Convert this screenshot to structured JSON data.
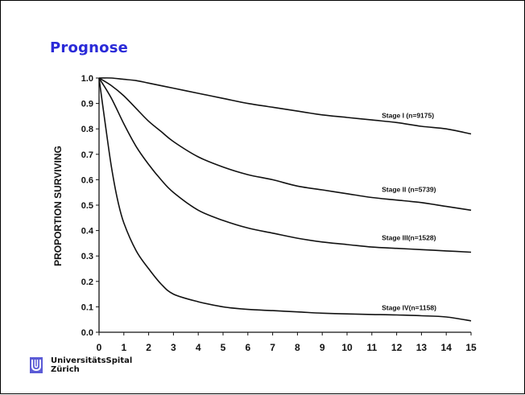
{
  "slide": {
    "title": "Prognose",
    "org_line1": "UniversitätsSpital",
    "org_line2": "Zürich",
    "logo_color": "#5b5bd6",
    "title_color": "#2a2ad8"
  },
  "chart_data": {
    "type": "line",
    "title": "",
    "xlabel": "",
    "ylabel": "PROPORTION SURVIVING",
    "xlim": [
      0,
      15
    ],
    "ylim": [
      0,
      1.0
    ],
    "xticks": [
      "0",
      "1",
      "2",
      "3",
      "4",
      "5",
      "6",
      "7",
      "8",
      "9",
      "10",
      "11",
      "12",
      "13",
      "14",
      "15"
    ],
    "yticks": [
      "0.0",
      "0.1",
      "0.2",
      "0.3",
      "0.4",
      "0.5",
      "0.6",
      "0.7",
      "0.8",
      "0.9",
      "1.0"
    ],
    "grid": false,
    "series": [
      {
        "name": "Stage I  (n=9175)",
        "x": [
          0,
          0.5,
          1,
          1.5,
          2,
          3,
          4,
          5,
          6,
          7,
          8,
          9,
          10,
          11,
          12,
          13,
          14,
          15
        ],
        "y": [
          1.0,
          1.0,
          0.995,
          0.99,
          0.98,
          0.96,
          0.94,
          0.92,
          0.9,
          0.885,
          0.87,
          0.855,
          0.845,
          0.835,
          0.825,
          0.81,
          0.8,
          0.78
        ]
      },
      {
        "name": "Stage II (n=5739)",
        "x": [
          0,
          0.5,
          1,
          1.5,
          2,
          2.5,
          3,
          4,
          5,
          6,
          7,
          8,
          9,
          10,
          11,
          12,
          13,
          14,
          15
        ],
        "y": [
          1.0,
          0.97,
          0.93,
          0.88,
          0.83,
          0.79,
          0.75,
          0.69,
          0.65,
          0.62,
          0.6,
          0.575,
          0.56,
          0.545,
          0.53,
          0.52,
          0.51,
          0.495,
          0.48
        ]
      },
      {
        "name": "Stage III(n=1528)",
        "x": [
          0,
          0.5,
          1,
          1.5,
          2,
          2.5,
          3,
          4,
          5,
          6,
          7,
          8,
          9,
          10,
          11,
          12,
          13,
          14,
          15
        ],
        "y": [
          1.0,
          0.92,
          0.82,
          0.73,
          0.66,
          0.6,
          0.55,
          0.48,
          0.44,
          0.41,
          0.39,
          0.37,
          0.355,
          0.345,
          0.335,
          0.33,
          0.325,
          0.32,
          0.315
        ]
      },
      {
        "name": "Stage IV(n=1158)",
        "x": [
          0,
          0.25,
          0.5,
          0.75,
          1,
          1.5,
          2,
          2.5,
          3,
          4,
          5,
          6,
          7,
          8,
          9,
          10,
          11,
          12,
          13,
          14,
          15
        ],
        "y": [
          1.0,
          0.82,
          0.65,
          0.52,
          0.43,
          0.32,
          0.25,
          0.19,
          0.15,
          0.12,
          0.1,
          0.09,
          0.085,
          0.08,
          0.075,
          0.072,
          0.07,
          0.068,
          0.065,
          0.06,
          0.045
        ]
      }
    ]
  }
}
